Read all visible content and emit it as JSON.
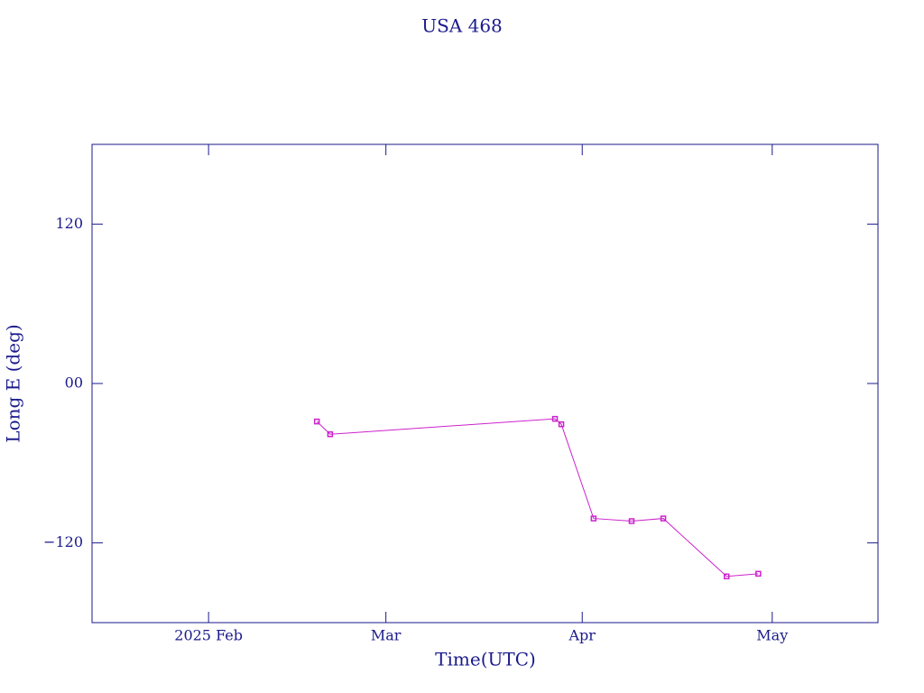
{
  "chart_data": {
    "type": "line",
    "title": "USA 468",
    "x_label": "Time(UTC)",
    "y_label": "Long E (deg)",
    "x": [
      17.1,
      19.2,
      54.7,
      55.7,
      60.8,
      66.8,
      71.8,
      81.8,
      86.8
    ],
    "series": [
      {
        "color": "#cc22cc",
        "values": [
          -28.6,
          -38.2,
          -26.6,
          -30.7,
          -101.6,
          -103.6,
          -101.6,
          -145.2,
          -143.2
        ]
      }
    ],
    "xlim": [
      -18.4,
      105.7
    ],
    "xticks": [
      {
        "value": 0,
        "label": "2025 Feb"
      },
      {
        "value": 28,
        "label": "Mar"
      },
      {
        "value": 59,
        "label": "Apr"
      },
      {
        "value": 89,
        "label": "May"
      }
    ],
    "ylim": [
      -180,
      180
    ],
    "yticks": [
      {
        "value": -120,
        "label": "−120"
      },
      {
        "value": 0,
        "label": "00"
      },
      120
    ],
    "axis_color": "#1a1a8c"
  }
}
